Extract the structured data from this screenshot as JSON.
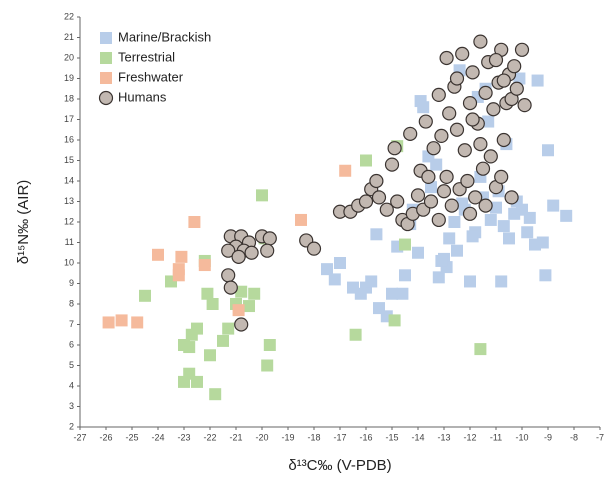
{
  "chart_data": {
    "type": "scatter",
    "x_label": "δ¹³C‰ (V-PDB)",
    "y_label": "δ¹⁵N‰ (AIR)",
    "xlim": [
      -27,
      -7
    ],
    "ylim": [
      2,
      22
    ],
    "xticks": [
      -27,
      -26,
      -25,
      -24,
      -23,
      -22,
      -21,
      -20,
      -19,
      -18,
      -17,
      -16,
      -15,
      -14,
      -13,
      -12,
      -11,
      -10,
      -9,
      -8,
      -7
    ],
    "yticks": [
      2,
      3,
      4,
      5,
      6,
      7,
      8,
      9,
      10,
      11,
      12,
      13,
      14,
      15,
      16,
      17,
      18,
      19,
      20,
      21,
      22
    ],
    "series": [
      {
        "name": "Marine/Brackish",
        "color": "#b8cde9",
        "marker": "square",
        "x": [
          -17.5,
          -17.2,
          -17,
          -16.5,
          -16.2,
          -16,
          -15.8,
          -15.5,
          -15.2,
          -15,
          -14.8,
          -14.5,
          -14.3,
          -14,
          -13.8,
          -13.5,
          -13.2,
          -13,
          -12.8,
          -12.5,
          -12.3,
          -12,
          -11.8,
          -11.5,
          -11.2,
          -11,
          -10.8,
          -10.5,
          -10.3,
          -10,
          -9.8,
          -9.5,
          -9.2,
          -9,
          -8.8,
          -8.3,
          -13.9,
          -13.6,
          -12.9,
          -12.6,
          -12.2,
          -11.9,
          -11.6,
          -11.3,
          -10.9,
          -10.6,
          -10.2,
          -9.7,
          -9.1,
          -14.2,
          -13.3,
          -12.4,
          -11.4,
          -10.1,
          -15.6,
          -14.6,
          -13.1,
          -11.7,
          -10.7,
          -9.4
        ],
        "values": [
          9.7,
          9.2,
          10,
          8.8,
          8.5,
          8.8,
          9.1,
          7.8,
          7.4,
          8.5,
          10.8,
          9.4,
          11.9,
          10.5,
          17.6,
          13.7,
          9.3,
          10.2,
          11.2,
          10.6,
          12.9,
          9.1,
          11.5,
          13.2,
          12.1,
          12.7,
          9.1,
          11.2,
          12.4,
          12.6,
          11.5,
          10.9,
          11,
          15.5,
          12.8,
          12.3,
          17.9,
          15.2,
          9.8,
          12,
          12.6,
          11.3,
          14.2,
          16.9,
          13.5,
          15.8,
          13,
          12.2,
          9.4,
          12.6,
          14.8,
          19.4,
          18.5,
          19,
          11.4,
          8.5,
          10.1,
          18.1,
          11.8,
          18.9
        ]
      },
      {
        "name": "Terrestrial",
        "color": "#b6d99d",
        "marker": "square",
        "x": [
          -24.5,
          -23.5,
          -23,
          -22.8,
          -22.5,
          -22.1,
          -23,
          -22.7,
          -22.5,
          -22,
          -21.8,
          -21.5,
          -21.3,
          -21,
          -20.8,
          -20.5,
          -20.3,
          -19.7,
          -19.8,
          -20,
          -19.9,
          -16.4,
          -16,
          -14.9,
          -14.8,
          -11.6,
          -14.5,
          -22.2,
          -21.9,
          -22.8
        ],
        "values": [
          8.4,
          9.1,
          4.2,
          4.6,
          4.2,
          8.5,
          6,
          6.5,
          6.8,
          5.5,
          3.6,
          6.2,
          6.8,
          8,
          8.6,
          7.9,
          8.5,
          6,
          5,
          13.3,
          11.2,
          6.5,
          15,
          7.2,
          15.7,
          5.8,
          10.9,
          10.1,
          8,
          5.9
        ]
      },
      {
        "name": "Freshwater",
        "color": "#f5ba9c",
        "marker": "square",
        "x": [
          -25.9,
          -25.4,
          -24.8,
          -24,
          -23.1,
          -23.2,
          -23.2,
          -22.6,
          -22.2,
          -20.9,
          -18.5,
          -16.8
        ],
        "values": [
          7.1,
          7.2,
          7.1,
          10.4,
          10.3,
          9.7,
          9.4,
          12,
          9.9,
          7.7,
          12.1,
          14.5
        ]
      },
      {
        "name": "Humans",
        "color": "#c2b8b1",
        "marker": "circle",
        "x": [
          -21.2,
          -20.8,
          -20.5,
          -21,
          -21.3,
          -20.7,
          -20.9,
          -20.4,
          -20,
          -19.7,
          -19.8,
          -21.3,
          -21.2,
          -20.8,
          -18.3,
          -18,
          -17,
          -16.6,
          -16.3,
          -16,
          -15.8,
          -15.6,
          -15.5,
          -15.2,
          -15,
          -14.8,
          -14.6,
          -14.4,
          -14.2,
          -14,
          -13.9,
          -13.8,
          -13.6,
          -13.5,
          -13.4,
          -13.2,
          -13.1,
          -13,
          -12.9,
          -12.8,
          -12.7,
          -12.6,
          -12.5,
          -12.4,
          -12.3,
          -12.2,
          -12.1,
          -12,
          -11.9,
          -11.8,
          -11.7,
          -11.6,
          -11.5,
          -11.4,
          -11.3,
          -11.2,
          -11.1,
          -11,
          -10.9,
          -10.8,
          -10.7,
          -10.6,
          -10.5,
          -10.4,
          -10.3,
          -10.2,
          -10,
          -9.9,
          -10.8,
          -11.4,
          -12.9,
          -13.7,
          -14.3,
          -14.9,
          -12,
          -11,
          -10.7,
          -11.9,
          -12.5,
          -13.2,
          -10.4,
          -11.6
        ],
        "values": [
          11.3,
          11.3,
          11,
          10.8,
          10.6,
          10.6,
          10.3,
          10.5,
          11.3,
          11.2,
          10.6,
          9.4,
          8.8,
          7,
          11.1,
          10.7,
          12.5,
          12.5,
          12.8,
          13,
          13.6,
          14,
          13.2,
          12.6,
          14.8,
          13,
          12.1,
          11.9,
          12.4,
          13.3,
          14.5,
          12.6,
          14.2,
          13,
          15.6,
          12.1,
          16.2,
          13.5,
          14.2,
          17.3,
          12.8,
          18.6,
          16.5,
          13.6,
          20.2,
          15.5,
          14,
          17.8,
          19.3,
          13.2,
          16.8,
          20.8,
          14.6,
          18.3,
          19.8,
          15.2,
          17.5,
          13.7,
          18.8,
          20.4,
          16,
          17.8,
          19.2,
          18,
          19.6,
          18.5,
          20.4,
          17.7,
          14.2,
          12.8,
          20,
          16.9,
          16.3,
          15.6,
          12.4,
          19.9,
          18.9,
          17,
          19,
          18.2,
          13.2,
          15.8
        ]
      }
    ]
  }
}
